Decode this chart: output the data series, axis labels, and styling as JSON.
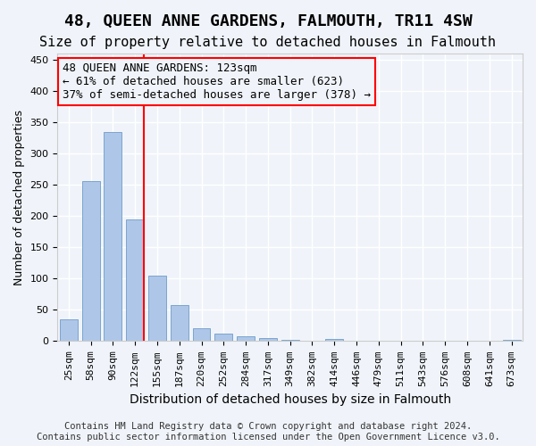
{
  "title": "48, QUEEN ANNE GARDENS, FALMOUTH, TR11 4SW",
  "subtitle": "Size of property relative to detached houses in Falmouth",
  "xlabel": "Distribution of detached houses by size in Falmouth",
  "ylabel": "Number of detached properties",
  "categories": [
    "25sqm",
    "58sqm",
    "90sqm",
    "122sqm",
    "155sqm",
    "187sqm",
    "220sqm",
    "252sqm",
    "284sqm",
    "317sqm",
    "349sqm",
    "382sqm",
    "414sqm",
    "446sqm",
    "479sqm",
    "511sqm",
    "543sqm",
    "576sqm",
    "608sqm",
    "641sqm",
    "673sqm"
  ],
  "values": [
    35,
    256,
    335,
    195,
    105,
    57,
    20,
    12,
    8,
    5,
    2,
    0,
    3,
    0,
    0,
    0,
    0,
    0,
    0,
    0,
    2
  ],
  "bar_color": "#aec6e8",
  "bar_edgecolor": "#5a8fc2",
  "vline_x_index": 3,
  "vline_color": "red",
  "annotation_text": "48 QUEEN ANNE GARDENS: 123sqm\n← 61% of detached houses are smaller (623)\n37% of semi-detached houses are larger (378) →",
  "annotation_box_edgecolor": "red",
  "ylim": [
    0,
    460
  ],
  "yticks": [
    0,
    50,
    100,
    150,
    200,
    250,
    300,
    350,
    400,
    450
  ],
  "footer": "Contains HM Land Registry data © Crown copyright and database right 2024.\nContains public sector information licensed under the Open Government Licence v3.0.",
  "bg_color": "#f0f4fa",
  "grid_color": "#ffffff",
  "title_fontsize": 13,
  "subtitle_fontsize": 11,
  "xlabel_fontsize": 10,
  "ylabel_fontsize": 9,
  "tick_fontsize": 8,
  "annotation_fontsize": 9,
  "footer_fontsize": 7.5
}
